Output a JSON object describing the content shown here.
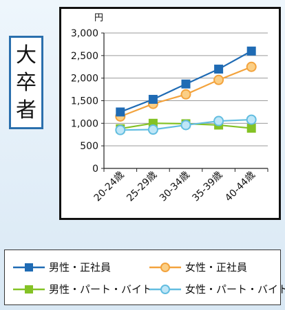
{
  "side_label": [
    "大",
    "卒",
    "者"
  ],
  "chart_data": {
    "type": "line",
    "unit_label": "円",
    "categories": [
      "20-24歳",
      "25-29歳",
      "30-34歳",
      "35-39歳",
      "40-44歳"
    ],
    "ylim": [
      0,
      3000
    ],
    "yticks": [
      "0",
      "500",
      "1,000",
      "1,500",
      "2,000",
      "2,500",
      "3,000"
    ],
    "ytick_values": [
      0,
      500,
      1000,
      1500,
      2000,
      2500,
      3000
    ],
    "grid": true,
    "legend_position": "bottom",
    "series": [
      {
        "name": "男性・正社員",
        "values": [
          1250,
          1530,
          1870,
          2200,
          2600
        ],
        "color": "#1f6bb4",
        "marker": "square"
      },
      {
        "name": "女性・正社員",
        "values": [
          1150,
          1430,
          1640,
          1960,
          2250
        ],
        "color": "#f3a33d",
        "marker": "circle"
      },
      {
        "name": "男性・パート・バイト",
        "values": [
          880,
          1000,
          990,
          960,
          890
        ],
        "color": "#84c225",
        "marker": "square"
      },
      {
        "name": "女性・パート・バイト",
        "values": [
          850,
          860,
          960,
          1050,
          1080
        ],
        "color": "#62bde0",
        "marker": "circle"
      }
    ]
  }
}
